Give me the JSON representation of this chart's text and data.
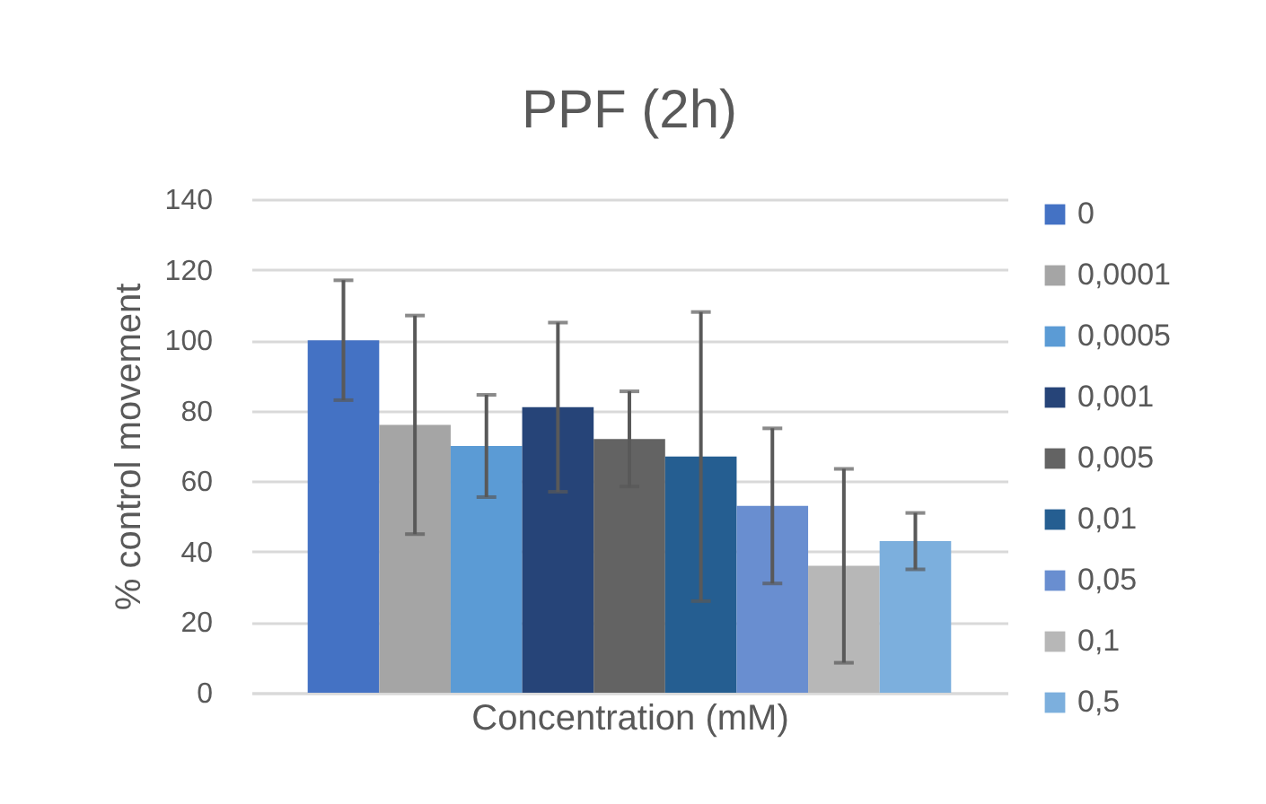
{
  "chart_data": {
    "type": "bar",
    "title": "PPF (2h)",
    "xlabel": "Concentration (mM)",
    "ylabel": "% control movement",
    "categories": [
      null
    ],
    "series": [
      {
        "name": "0",
        "color": "#4472c4",
        "values": [
          100
        ],
        "errors": [
          17
        ]
      },
      {
        "name": "0,0001",
        "color": "#a5a5a5",
        "values": [
          76
        ],
        "errors": [
          31
        ]
      },
      {
        "name": "0,0005",
        "color": "#5b9bd5",
        "values": [
          70
        ],
        "errors": [
          14.5
        ]
      },
      {
        "name": "0,001",
        "color": "#264478",
        "values": [
          81
        ],
        "errors": [
          24
        ]
      },
      {
        "name": "0,005",
        "color": "#636363",
        "values": [
          72
        ],
        "errors": [
          13.5
        ]
      },
      {
        "name": "0,01",
        "color": "#255e91",
        "values": [
          67
        ],
        "errors": [
          41
        ]
      },
      {
        "name": "0,05",
        "color": "#698ed0",
        "values": [
          53
        ],
        "errors": [
          22
        ]
      },
      {
        "name": "0,1",
        "color": "#b7b7b7",
        "values": [
          36
        ],
        "errors": [
          27.5
        ]
      },
      {
        "name": "0,5",
        "color": "#7cafdd",
        "values": [
          43
        ],
        "errors": [
          8
        ]
      }
    ],
    "ylim": [
      0,
      140
    ],
    "yticks": [
      0,
      20,
      40,
      60,
      80,
      100,
      120,
      140
    ],
    "grid": "y",
    "legend": "right",
    "tick_labels": "y"
  }
}
